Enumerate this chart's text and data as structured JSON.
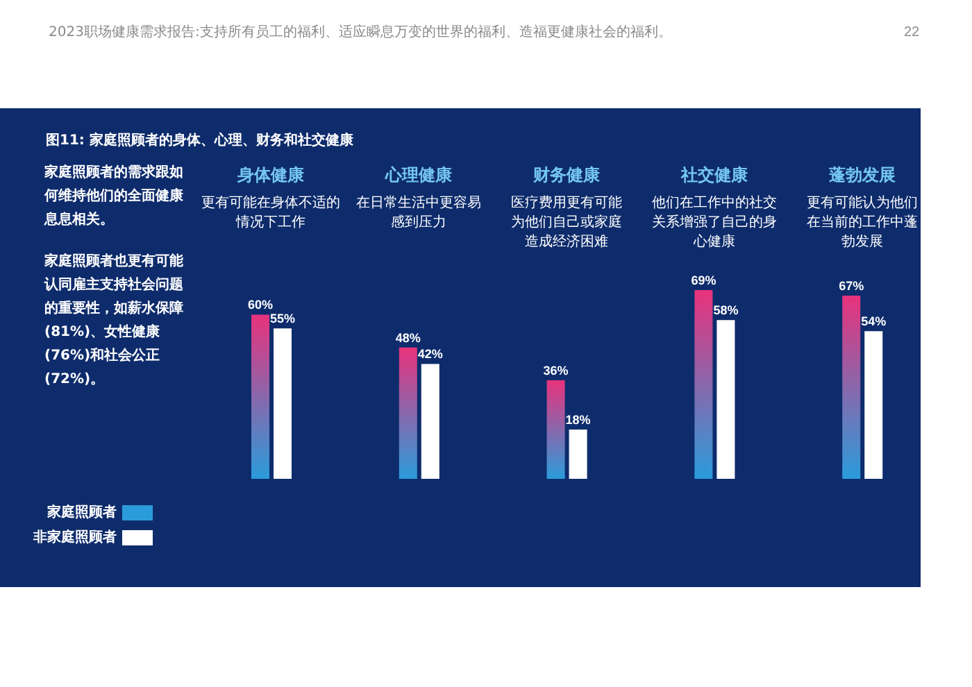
{
  "chart_data": {
    "type": "bar",
    "title": "图11: 家庭照顾者的身体、心理、财务和社交健康",
    "categories": [
      "身体健康",
      "心理健康",
      "财务健康",
      "社交健康",
      "蓬勃发展"
    ],
    "series": [
      {
        "name": "家庭照顾者",
        "color": "#2a9cdb",
        "values": [
          60,
          48,
          36,
          69,
          67
        ],
        "value_labels": [
          "60%",
          "48%",
          "36%",
          "69%",
          "67%"
        ]
      },
      {
        "name": "非家庭照顾者",
        "color": "#ffffff",
        "values": [
          55,
          42,
          18,
          58,
          54
        ],
        "value_labels": [
          "55%",
          "42%",
          "18%",
          "58%",
          "54%"
        ]
      }
    ],
    "annotations": [
      "2023职场健康需求报告:支持所有员工的福利、适应瞬息万变的世界的福利、造福更健康社会的福利。",
      "22",
      "家庭照顾者的需求跟如何维持他们的全面健康息息相关。",
      "家庭照顾者也更有可能认同雇主支持社会问题的重要性，如薪水保障(81%)、女性健康(76%)和社会公正(72%)。",
      "更有可能在身体不适的情况下工作",
      "在日常生活中更容易感到压力",
      "医疗费用更有可能为他们自己或家庭造成经济困难",
      "他们在工作中的社交关系增强了自己的身心健康",
      "更有可能认为他们在当前的工作中蓬勃发展"
    ],
    "legend": "bottom left",
    "tick_labels": "x"
  }
}
